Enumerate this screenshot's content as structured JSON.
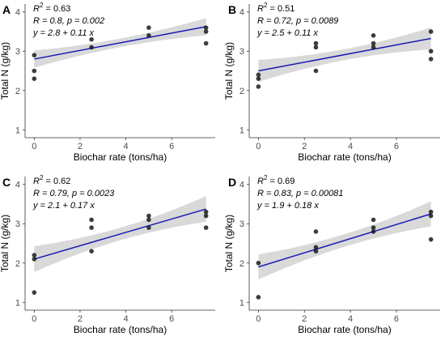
{
  "chart_data": [
    {
      "type": "scatter",
      "panel_label": "A",
      "xlabel": "Biochar rate (tons/ha)",
      "ylabel": "Total N (g/kg)",
      "xlim": [
        -0.4,
        7.9
      ],
      "ylim": [
        0.8,
        4.2
      ],
      "x_ticks": [
        0,
        2,
        4,
        6
      ],
      "y_ticks": [
        1,
        2,
        3,
        4
      ],
      "grid": false,
      "stats": {
        "r2_value": "0.63",
        "r_line": "R = 0.8, p = 0.002",
        "eq_line": "y = 2.8 + 0.11 x"
      },
      "points": [
        [
          0,
          2.9
        ],
        [
          0,
          2.5
        ],
        [
          0,
          2.3
        ],
        [
          2.5,
          3.3
        ],
        [
          2.5,
          3.1
        ],
        [
          5,
          3.6
        ],
        [
          5,
          3.4
        ],
        [
          7.5,
          3.6
        ],
        [
          7.5,
          3.5
        ],
        [
          7.5,
          3.2
        ]
      ],
      "fit": {
        "intercept": 2.8,
        "slope": 0.11,
        "ci_half_start": 0.22,
        "ci_half_mid": 0.11,
        "ci_half_end": 0.22
      }
    },
    {
      "type": "scatter",
      "panel_label": "B",
      "xlabel": "Biochar rate (tons/ha)",
      "ylabel": "Total N (g/kg)",
      "xlim": [
        -0.4,
        7.9
      ],
      "ylim": [
        0.8,
        4.2
      ],
      "x_ticks": [
        0,
        2,
        4,
        6
      ],
      "y_ticks": [
        1,
        2,
        3,
        4
      ],
      "grid": false,
      "stats": {
        "r2_value": "0.51",
        "r_line": "R = 0.72, p = 0.0089",
        "eq_line": "y = 2.5 + 0.11 x"
      },
      "points": [
        [
          0,
          2.4
        ],
        [
          0,
          2.3
        ],
        [
          0,
          2.1
        ],
        [
          2.5,
          3.2
        ],
        [
          2.5,
          3.1
        ],
        [
          2.5,
          2.5
        ],
        [
          5,
          3.4
        ],
        [
          5,
          3.2
        ],
        [
          5,
          3.1
        ],
        [
          7.5,
          3.5
        ],
        [
          7.5,
          3.0
        ],
        [
          7.5,
          2.8
        ]
      ],
      "fit": {
        "intercept": 2.5,
        "slope": 0.11,
        "ci_half_start": 0.28,
        "ci_half_mid": 0.14,
        "ci_half_end": 0.28
      }
    },
    {
      "type": "scatter",
      "panel_label": "C",
      "xlabel": "Biochar rate (tons/ha)",
      "ylabel": "Total N (g/kg)",
      "xlim": [
        -0.4,
        7.9
      ],
      "ylim": [
        0.8,
        4.2
      ],
      "x_ticks": [
        0,
        2,
        4,
        6
      ],
      "y_ticks": [
        1,
        2,
        3,
        4
      ],
      "grid": false,
      "stats": {
        "r2_value": "0.62",
        "r_line": "R = 0.79, p = 0.0023",
        "eq_line": "y = 2.1 + 0.17 x"
      },
      "points": [
        [
          0,
          2.2
        ],
        [
          0,
          2.1
        ],
        [
          0,
          1.25
        ],
        [
          2.5,
          3.1
        ],
        [
          2.5,
          2.9
        ],
        [
          2.5,
          2.3
        ],
        [
          5,
          3.2
        ],
        [
          5,
          3.1
        ],
        [
          5,
          2.9
        ],
        [
          7.5,
          3.3
        ],
        [
          7.5,
          3.2
        ],
        [
          7.5,
          2.9
        ]
      ],
      "fit": {
        "intercept": 2.1,
        "slope": 0.17,
        "ci_half_start": 0.33,
        "ci_half_mid": 0.16,
        "ci_half_end": 0.33
      }
    },
    {
      "type": "scatter",
      "panel_label": "D",
      "xlabel": "Biochar rate (tons/ha)",
      "ylabel": "Total N (g/kg)",
      "xlim": [
        -0.4,
        7.9
      ],
      "ylim": [
        0.8,
        4.2
      ],
      "x_ticks": [
        0,
        2,
        4,
        6
      ],
      "y_ticks": [
        1,
        2,
        3,
        4
      ],
      "grid": false,
      "stats": {
        "r2_value": "0.69",
        "r_line": "R = 0.83, p = 0.00081",
        "eq_line": "y = 1.9 + 0.18 x"
      },
      "points": [
        [
          0,
          2.0
        ],
        [
          0,
          1.13
        ],
        [
          2.5,
          2.8
        ],
        [
          2.5,
          2.4
        ],
        [
          2.5,
          2.3
        ],
        [
          5,
          3.1
        ],
        [
          5,
          2.9
        ],
        [
          5,
          2.8
        ],
        [
          7.5,
          3.3
        ],
        [
          7.5,
          3.2
        ],
        [
          7.5,
          2.6
        ]
      ],
      "fit": {
        "intercept": 1.9,
        "slope": 0.18,
        "ci_half_start": 0.32,
        "ci_half_mid": 0.16,
        "ci_half_end": 0.32
      }
    }
  ],
  "colors": {
    "fit_line": "#1a1ab4",
    "ci_band": "#d9d9d9",
    "point": "#1a1a1a",
    "axis": "#333333",
    "text": "#000000",
    "tick_text": "#4d4d4d"
  }
}
